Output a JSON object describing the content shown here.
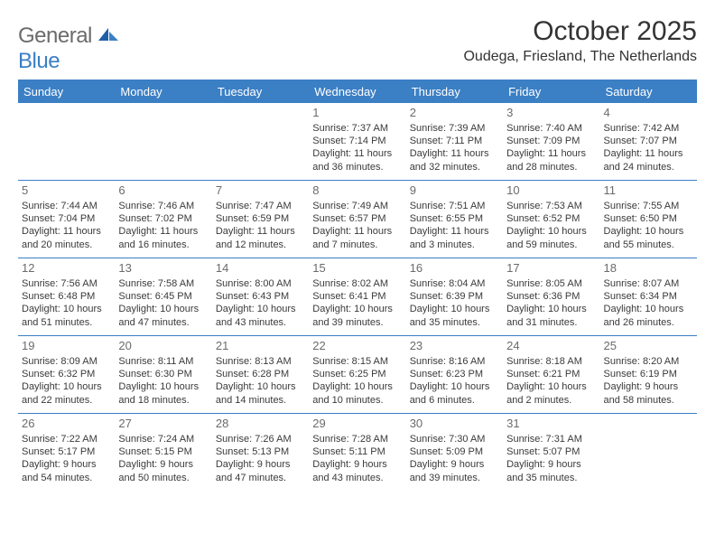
{
  "logo": {
    "main": "General",
    "sub": "Blue"
  },
  "title": "October 2025",
  "subtitle": "Oudega, Friesland, The Netherlands",
  "colors": {
    "header_bg": "#3b7fc4",
    "header_text": "#ffffff",
    "border": "#3b7fc4",
    "daynum": "#6b6b6b",
    "body_text": "#3a3a3a",
    "logo_main": "#6b6b6b",
    "logo_sub": "#3b7fc4"
  },
  "day_headers": [
    "Sunday",
    "Monday",
    "Tuesday",
    "Wednesday",
    "Thursday",
    "Friday",
    "Saturday"
  ],
  "weeks": [
    [
      null,
      null,
      null,
      {
        "n": "1",
        "sr": "Sunrise: 7:37 AM",
        "ss": "Sunset: 7:14 PM",
        "dl1": "Daylight: 11 hours",
        "dl2": "and 36 minutes."
      },
      {
        "n": "2",
        "sr": "Sunrise: 7:39 AM",
        "ss": "Sunset: 7:11 PM",
        "dl1": "Daylight: 11 hours",
        "dl2": "and 32 minutes."
      },
      {
        "n": "3",
        "sr": "Sunrise: 7:40 AM",
        "ss": "Sunset: 7:09 PM",
        "dl1": "Daylight: 11 hours",
        "dl2": "and 28 minutes."
      },
      {
        "n": "4",
        "sr": "Sunrise: 7:42 AM",
        "ss": "Sunset: 7:07 PM",
        "dl1": "Daylight: 11 hours",
        "dl2": "and 24 minutes."
      }
    ],
    [
      {
        "n": "5",
        "sr": "Sunrise: 7:44 AM",
        "ss": "Sunset: 7:04 PM",
        "dl1": "Daylight: 11 hours",
        "dl2": "and 20 minutes."
      },
      {
        "n": "6",
        "sr": "Sunrise: 7:46 AM",
        "ss": "Sunset: 7:02 PM",
        "dl1": "Daylight: 11 hours",
        "dl2": "and 16 minutes."
      },
      {
        "n": "7",
        "sr": "Sunrise: 7:47 AM",
        "ss": "Sunset: 6:59 PM",
        "dl1": "Daylight: 11 hours",
        "dl2": "and 12 minutes."
      },
      {
        "n": "8",
        "sr": "Sunrise: 7:49 AM",
        "ss": "Sunset: 6:57 PM",
        "dl1": "Daylight: 11 hours",
        "dl2": "and 7 minutes."
      },
      {
        "n": "9",
        "sr": "Sunrise: 7:51 AM",
        "ss": "Sunset: 6:55 PM",
        "dl1": "Daylight: 11 hours",
        "dl2": "and 3 minutes."
      },
      {
        "n": "10",
        "sr": "Sunrise: 7:53 AM",
        "ss": "Sunset: 6:52 PM",
        "dl1": "Daylight: 10 hours",
        "dl2": "and 59 minutes."
      },
      {
        "n": "11",
        "sr": "Sunrise: 7:55 AM",
        "ss": "Sunset: 6:50 PM",
        "dl1": "Daylight: 10 hours",
        "dl2": "and 55 minutes."
      }
    ],
    [
      {
        "n": "12",
        "sr": "Sunrise: 7:56 AM",
        "ss": "Sunset: 6:48 PM",
        "dl1": "Daylight: 10 hours",
        "dl2": "and 51 minutes."
      },
      {
        "n": "13",
        "sr": "Sunrise: 7:58 AM",
        "ss": "Sunset: 6:45 PM",
        "dl1": "Daylight: 10 hours",
        "dl2": "and 47 minutes."
      },
      {
        "n": "14",
        "sr": "Sunrise: 8:00 AM",
        "ss": "Sunset: 6:43 PM",
        "dl1": "Daylight: 10 hours",
        "dl2": "and 43 minutes."
      },
      {
        "n": "15",
        "sr": "Sunrise: 8:02 AM",
        "ss": "Sunset: 6:41 PM",
        "dl1": "Daylight: 10 hours",
        "dl2": "and 39 minutes."
      },
      {
        "n": "16",
        "sr": "Sunrise: 8:04 AM",
        "ss": "Sunset: 6:39 PM",
        "dl1": "Daylight: 10 hours",
        "dl2": "and 35 minutes."
      },
      {
        "n": "17",
        "sr": "Sunrise: 8:05 AM",
        "ss": "Sunset: 6:36 PM",
        "dl1": "Daylight: 10 hours",
        "dl2": "and 31 minutes."
      },
      {
        "n": "18",
        "sr": "Sunrise: 8:07 AM",
        "ss": "Sunset: 6:34 PM",
        "dl1": "Daylight: 10 hours",
        "dl2": "and 26 minutes."
      }
    ],
    [
      {
        "n": "19",
        "sr": "Sunrise: 8:09 AM",
        "ss": "Sunset: 6:32 PM",
        "dl1": "Daylight: 10 hours",
        "dl2": "and 22 minutes."
      },
      {
        "n": "20",
        "sr": "Sunrise: 8:11 AM",
        "ss": "Sunset: 6:30 PM",
        "dl1": "Daylight: 10 hours",
        "dl2": "and 18 minutes."
      },
      {
        "n": "21",
        "sr": "Sunrise: 8:13 AM",
        "ss": "Sunset: 6:28 PM",
        "dl1": "Daylight: 10 hours",
        "dl2": "and 14 minutes."
      },
      {
        "n": "22",
        "sr": "Sunrise: 8:15 AM",
        "ss": "Sunset: 6:25 PM",
        "dl1": "Daylight: 10 hours",
        "dl2": "and 10 minutes."
      },
      {
        "n": "23",
        "sr": "Sunrise: 8:16 AM",
        "ss": "Sunset: 6:23 PM",
        "dl1": "Daylight: 10 hours",
        "dl2": "and 6 minutes."
      },
      {
        "n": "24",
        "sr": "Sunrise: 8:18 AM",
        "ss": "Sunset: 6:21 PM",
        "dl1": "Daylight: 10 hours",
        "dl2": "and 2 minutes."
      },
      {
        "n": "25",
        "sr": "Sunrise: 8:20 AM",
        "ss": "Sunset: 6:19 PM",
        "dl1": "Daylight: 9 hours",
        "dl2": "and 58 minutes."
      }
    ],
    [
      {
        "n": "26",
        "sr": "Sunrise: 7:22 AM",
        "ss": "Sunset: 5:17 PM",
        "dl1": "Daylight: 9 hours",
        "dl2": "and 54 minutes."
      },
      {
        "n": "27",
        "sr": "Sunrise: 7:24 AM",
        "ss": "Sunset: 5:15 PM",
        "dl1": "Daylight: 9 hours",
        "dl2": "and 50 minutes."
      },
      {
        "n": "28",
        "sr": "Sunrise: 7:26 AM",
        "ss": "Sunset: 5:13 PM",
        "dl1": "Daylight: 9 hours",
        "dl2": "and 47 minutes."
      },
      {
        "n": "29",
        "sr": "Sunrise: 7:28 AM",
        "ss": "Sunset: 5:11 PM",
        "dl1": "Daylight: 9 hours",
        "dl2": "and 43 minutes."
      },
      {
        "n": "30",
        "sr": "Sunrise: 7:30 AM",
        "ss": "Sunset: 5:09 PM",
        "dl1": "Daylight: 9 hours",
        "dl2": "and 39 minutes."
      },
      {
        "n": "31",
        "sr": "Sunrise: 7:31 AM",
        "ss": "Sunset: 5:07 PM",
        "dl1": "Daylight: 9 hours",
        "dl2": "and 35 minutes."
      },
      null
    ]
  ]
}
